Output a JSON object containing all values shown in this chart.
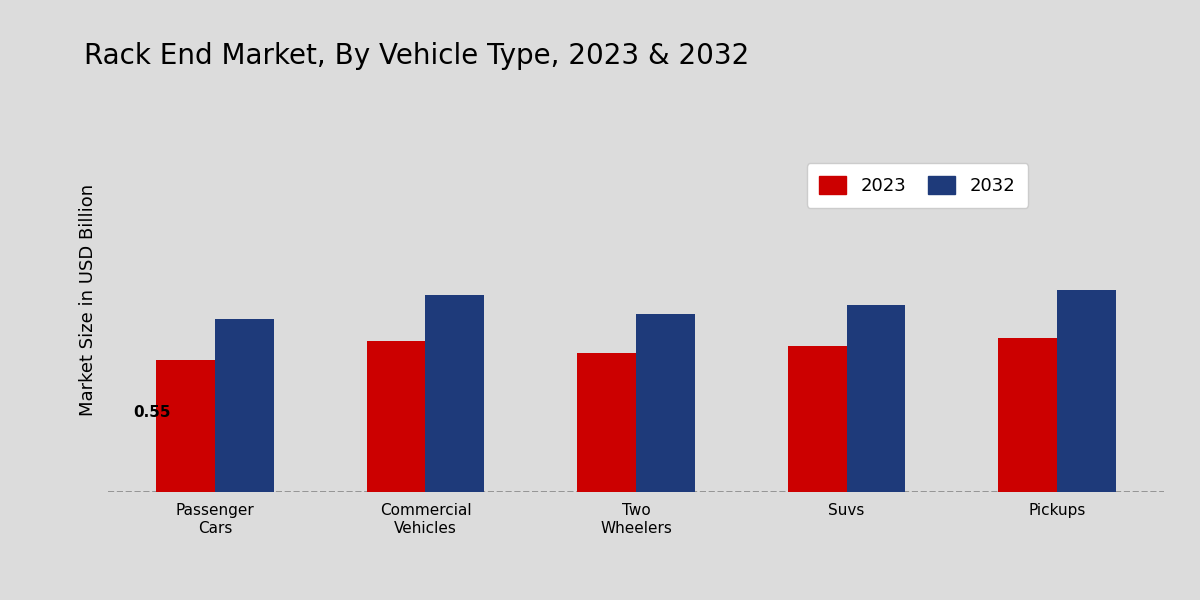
{
  "title": "Rack End Market, By Vehicle Type, 2023 & 2032",
  "ylabel": "Market Size in USD Billion",
  "categories": [
    "Passenger\nCars",
    "Commercial\nVehicles",
    "Two\nWheelers",
    "Suvs",
    "Pickups"
  ],
  "values_2023": [
    0.55,
    0.63,
    0.58,
    0.61,
    0.64
  ],
  "values_2032": [
    0.72,
    0.82,
    0.74,
    0.78,
    0.84
  ],
  "color_2023": "#cc0000",
  "color_2032": "#1e3a7a",
  "annotation_value": "0.55",
  "annotation_bar_index": 0,
  "ylim": [
    0,
    1.6
  ],
  "bar_width": 0.28,
  "background_color": "#dcdcdc",
  "legend_labels": [
    "2023",
    "2032"
  ],
  "title_fontsize": 20,
  "axis_label_fontsize": 13,
  "tick_fontsize": 11
}
